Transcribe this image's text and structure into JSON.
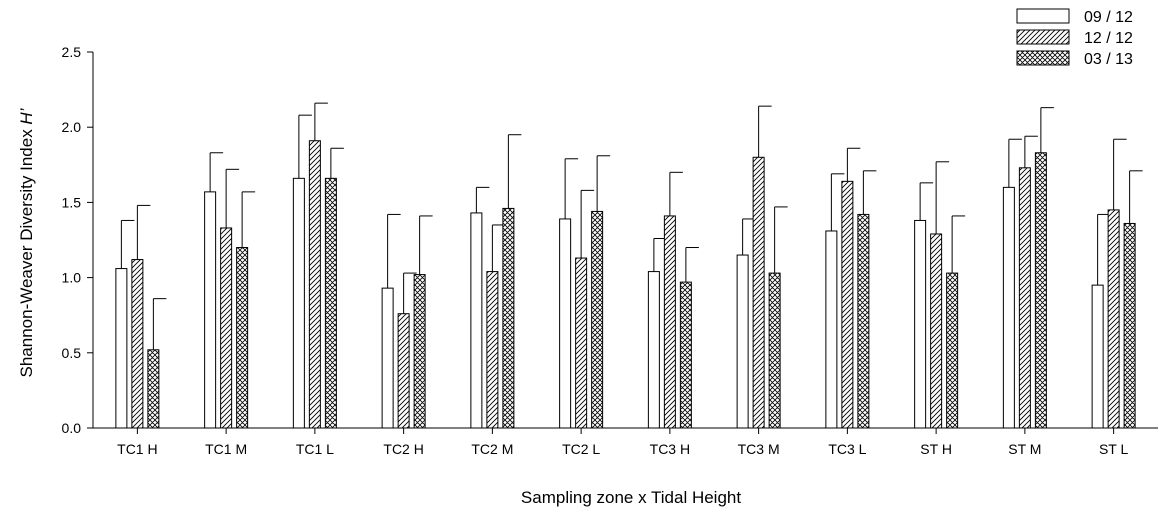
{
  "chart_data": {
    "type": "bar",
    "categories": [
      "TC1 H",
      "TC1 M",
      "TC1 L",
      "TC2 H",
      "TC2 M",
      "TC2 L",
      "TC3 H",
      "TC3 M",
      "TC3 L",
      "ST H",
      "ST M",
      "ST L"
    ],
    "series": [
      {
        "name": "09 / 12",
        "pattern": "none",
        "values": [
          1.06,
          1.57,
          1.66,
          0.93,
          1.43,
          1.39,
          1.04,
          1.15,
          1.31,
          1.38,
          1.6,
          0.95
        ],
        "errors": [
          0.32,
          0.26,
          0.42,
          0.49,
          0.17,
          0.4,
          0.22,
          0.24,
          0.38,
          0.25,
          0.32,
          0.47
        ]
      },
      {
        "name": "12 / 12",
        "pattern": "diagonal-hatch",
        "values": [
          1.12,
          1.33,
          1.91,
          0.76,
          1.04,
          1.13,
          1.41,
          1.8,
          1.64,
          1.29,
          1.73,
          1.45
        ],
        "errors": [
          0.36,
          0.39,
          0.25,
          0.27,
          0.31,
          0.45,
          0.29,
          0.34,
          0.22,
          0.48,
          0.21,
          0.47
        ]
      },
      {
        "name": "03 / 13",
        "pattern": "crosshatch",
        "values": [
          0.52,
          1.2,
          1.66,
          1.02,
          1.46,
          1.44,
          0.97,
          1.03,
          1.42,
          1.03,
          1.83,
          1.36
        ],
        "errors": [
          0.34,
          0.37,
          0.2,
          0.39,
          0.49,
          0.37,
          0.23,
          0.44,
          0.29,
          0.38,
          0.3,
          0.35
        ]
      }
    ],
    "xlabel": "Sampling zone x Tidal Height",
    "ylabel_main": "Shannon-Weaver Diversity Index ",
    "ylabel_italic": "H’",
    "ylim": [
      0.0,
      2.5
    ],
    "yticks": [
      "0.0",
      "0.5",
      "1.0",
      "1.5",
      "2.0",
      "2.5"
    ],
    "grid": false,
    "legend_position": "top-right"
  }
}
